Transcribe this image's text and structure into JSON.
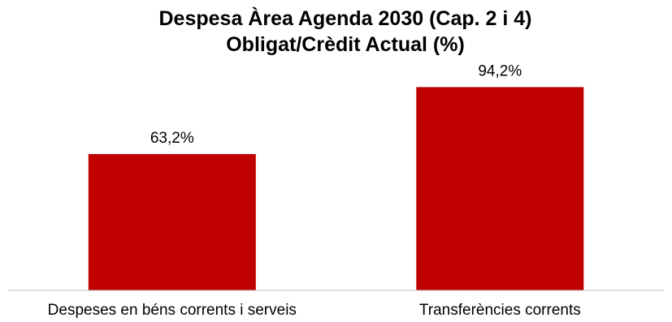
{
  "chart_data": {
    "type": "bar",
    "title": "Despesa Àrea Agenda 2030 (Cap. 2 i 4)",
    "subtitle": "Obligat/Crèdit Actual (%)",
    "categories": [
      "Despeses en béns corrents i serveis",
      "Transferències corrents"
    ],
    "values": [
      63.2,
      94.2
    ],
    "data_labels": [
      "63,2%",
      "94,2%"
    ],
    "unit": "%",
    "ylim": [
      0,
      100
    ],
    "grid": false,
    "legend": "none",
    "bar_color": "#c00000"
  }
}
